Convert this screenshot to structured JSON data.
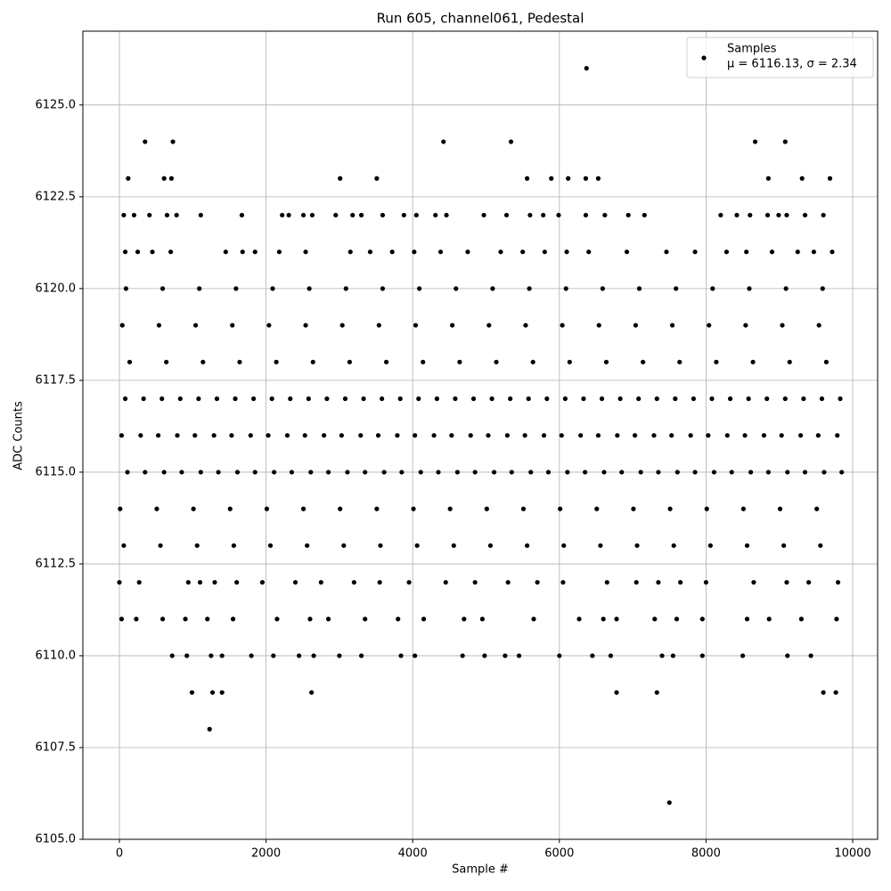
{
  "chart_data": {
    "type": "scatter",
    "title": "Run 605, channel061, Pedestal",
    "x_label": "Sample #",
    "y_label": "ADC Counts",
    "xlim": [
      -498,
      10340
    ],
    "ylim": [
      6105,
      6127.01
    ],
    "xticks": [
      0,
      2000,
      4000,
      6000,
      8000,
      10000
    ],
    "yticks": [
      {
        "value": 6105,
        "label": "6105.0"
      },
      {
        "value": 6107.5,
        "label": "6107.5"
      },
      {
        "value": 6110,
        "label": "6110.0"
      },
      {
        "value": 6112.5,
        "label": "6112.5"
      },
      {
        "value": 6115,
        "label": "6115.0"
      },
      {
        "value": 6117.5,
        "label": "6117.5"
      },
      {
        "value": 6120,
        "label": "6120.0"
      },
      {
        "value": 6122.5,
        "label": "6122.5"
      },
      {
        "value": 6125,
        "label": "6125.0"
      }
    ],
    "grid": true,
    "legend": "upper right",
    "legend_label": "μ = 6116.13, σ = 2.34",
    "series": [
      {
        "name": "Samples",
        "color": "#000000",
        "x": [
          60,
          560,
          1060,
          1560,
          2060,
          2560,
          3060,
          3560,
          4060,
          4560,
          5060,
          5560,
          6060,
          6560,
          7060,
          7560,
          8060,
          8560,
          9060,
          9560,
          10,
          510,
          1010,
          1510,
          2010,
          2510,
          3010,
          3510,
          4010,
          4510,
          5010,
          5510,
          6010,
          6510,
          7010,
          7510,
          8010,
          8510,
          9010,
          9510,
          110,
          610,
          1110,
          1610,
          2110,
          2610,
          3110,
          3610,
          4110,
          4610,
          5110,
          5610,
          6110,
          6610,
          7110,
          7610,
          8110,
          8610,
          9110,
          9610,
          30,
          530,
          1030,
          1530,
          2030,
          2530,
          3030,
          3530,
          4030,
          4530,
          5030,
          5530,
          6030,
          6530,
          7030,
          7530,
          8030,
          8530,
          9030,
          9530,
          80,
          580,
          1080,
          1580,
          2080,
          2580,
          3080,
          3580,
          4080,
          4580,
          5080,
          5580,
          6080,
          6580,
          7080,
          7580,
          8080,
          8580,
          9080,
          9580,
          140,
          640,
          1140,
          1640,
          2140,
          2640,
          3140,
          3640,
          4140,
          4640,
          5140,
          5640,
          6140,
          6640,
          7140,
          7640,
          8140,
          8640,
          9140,
          9640,
          40,
          540,
          1040,
          1540,
          2040,
          2540,
          3040,
          3540,
          4040,
          4540,
          5040,
          5540,
          6040,
          6540,
          7040,
          7540,
          8040,
          8540,
          9040,
          9540,
          90,
          590,
          1090,
          1590,
          2090,
          2590,
          3090,
          3590,
          4090,
          4590,
          5090,
          5590,
          6090,
          6590,
          7090,
          7590,
          8090,
          8590,
          9090,
          9590,
          350,
          850,
          1350,
          1850,
          2350,
          2850,
          3350,
          3850,
          4350,
          4850,
          5350,
          5850,
          6350,
          6850,
          7350,
          7850,
          8350,
          8850,
          9350,
          9850,
          290,
          790,
          1290,
          1790,
          2290,
          2790,
          3290,
          3790,
          4290,
          4790,
          5290,
          5790,
          6290,
          6790,
          7290,
          7790,
          8290,
          8790,
          9290,
          9790,
          330,
          830,
          1330,
          1830,
          2330,
          2830,
          3330,
          3830,
          4330,
          4830,
          5330,
          5830,
          6330,
          6830,
          7330,
          7830,
          8330,
          8830,
          9330,
          9830,
          6370,
          350,
          730,
          4420,
          5340,
          8670,
          9080,
          120,
          610,
          710,
          3010,
          3510,
          5560,
          5890,
          6120,
          6360,
          6530,
          8850,
          9310,
          9690,
          60,
          200,
          410,
          650,
          780,
          1110,
          1670,
          2220,
          2310,
          2510,
          2630,
          2950,
          3180,
          3300,
          3590,
          3880,
          4050,
          4310,
          4460,
          4970,
          5280,
          5600,
          5780,
          5990,
          6360,
          6620,
          6940,
          7160,
          8200,
          8420,
          8600,
          8840,
          8990,
          9100,
          9350,
          9600,
          80,
          250,
          450,
          700,
          1450,
          1680,
          1850,
          2180,
          2540,
          3150,
          3420,
          3720,
          4020,
          4380,
          4750,
          5200,
          5500,
          5800,
          6100,
          6400,
          6920,
          7460,
          7850,
          8280,
          8550,
          8900,
          9250,
          9470,
          9720,
          0,
          270,
          940,
          1100,
          1300,
          1600,
          1950,
          2400,
          2750,
          3200,
          3550,
          3950,
          4450,
          4850,
          5300,
          5700,
          6050,
          6650,
          7050,
          7350,
          7650,
          8000,
          8650,
          9100,
          9400,
          9800,
          30,
          230,
          590,
          900,
          1200,
          1550,
          2150,
          2600,
          2850,
          3350,
          3800,
          4150,
          4700,
          4950,
          5650,
          6270,
          6600,
          6780,
          7300,
          7600,
          7950,
          8560,
          8860,
          9300,
          9780,
          720,
          920,
          1250,
          1400,
          1800,
          2100,
          2450,
          2650,
          3000,
          3300,
          3840,
          4030,
          4680,
          4980,
          5260,
          5450,
          6000,
          6450,
          6700,
          7400,
          7550,
          7950,
          8500,
          9110,
          9430,
          990,
          1270,
          1400,
          2620,
          6780,
          7330,
          9600,
          9770,
          1230,
          7500
        ],
        "values": [
          6113,
          6113,
          6113,
          6113,
          6113,
          6113,
          6113,
          6113,
          6113,
          6113,
          6113,
          6113,
          6113,
          6113,
          6113,
          6113,
          6113,
          6113,
          6113,
          6113,
          6114,
          6114,
          6114,
          6114,
          6114,
          6114,
          6114,
          6114,
          6114,
          6114,
          6114,
          6114,
          6114,
          6114,
          6114,
          6114,
          6114,
          6114,
          6114,
          6114,
          6115,
          6115,
          6115,
          6115,
          6115,
          6115,
          6115,
          6115,
          6115,
          6115,
          6115,
          6115,
          6115,
          6115,
          6115,
          6115,
          6115,
          6115,
          6115,
          6115,
          6116,
          6116,
          6116,
          6116,
          6116,
          6116,
          6116,
          6116,
          6116,
          6116,
          6116,
          6116,
          6116,
          6116,
          6116,
          6116,
          6116,
          6116,
          6116,
          6116,
          6117,
          6117,
          6117,
          6117,
          6117,
          6117,
          6117,
          6117,
          6117,
          6117,
          6117,
          6117,
          6117,
          6117,
          6117,
          6117,
          6117,
          6117,
          6117,
          6117,
          6118,
          6118,
          6118,
          6118,
          6118,
          6118,
          6118,
          6118,
          6118,
          6118,
          6118,
          6118,
          6118,
          6118,
          6118,
          6118,
          6118,
          6118,
          6118,
          6118,
          6119,
          6119,
          6119,
          6119,
          6119,
          6119,
          6119,
          6119,
          6119,
          6119,
          6119,
          6119,
          6119,
          6119,
          6119,
          6119,
          6119,
          6119,
          6119,
          6119,
          6120,
          6120,
          6120,
          6120,
          6120,
          6120,
          6120,
          6120,
          6120,
          6120,
          6120,
          6120,
          6120,
          6120,
          6120,
          6120,
          6120,
          6120,
          6120,
          6120,
          6115,
          6115,
          6115,
          6115,
          6115,
          6115,
          6115,
          6115,
          6115,
          6115,
          6115,
          6115,
          6115,
          6115,
          6115,
          6115,
          6115,
          6115,
          6115,
          6115,
          6116,
          6116,
          6116,
          6116,
          6116,
          6116,
          6116,
          6116,
          6116,
          6116,
          6116,
          6116,
          6116,
          6116,
          6116,
          6116,
          6116,
          6116,
          6116,
          6116,
          6117,
          6117,
          6117,
          6117,
          6117,
          6117,
          6117,
          6117,
          6117,
          6117,
          6117,
          6117,
          6117,
          6117,
          6117,
          6117,
          6117,
          6117,
          6117,
          6117,
          6126,
          6124,
          6124,
          6124,
          6124,
          6124,
          6124,
          6123,
          6123,
          6123,
          6123,
          6123,
          6123,
          6123,
          6123,
          6123,
          6123,
          6123,
          6123,
          6123,
          6122,
          6122,
          6122,
          6122,
          6122,
          6122,
          6122,
          6122,
          6122,
          6122,
          6122,
          6122,
          6122,
          6122,
          6122,
          6122,
          6122,
          6122,
          6122,
          6122,
          6122,
          6122,
          6122,
          6122,
          6122,
          6122,
          6122,
          6122,
          6122,
          6122,
          6122,
          6122,
          6122,
          6122,
          6122,
          6122,
          6121,
          6121,
          6121,
          6121,
          6121,
          6121,
          6121,
          6121,
          6121,
          6121,
          6121,
          6121,
          6121,
          6121,
          6121,
          6121,
          6121,
          6121,
          6121,
          6121,
          6121,
          6121,
          6121,
          6121,
          6121,
          6121,
          6121,
          6121,
          6121,
          6112,
          6112,
          6112,
          6112,
          6112,
          6112,
          6112,
          6112,
          6112,
          6112,
          6112,
          6112,
          6112,
          6112,
          6112,
          6112,
          6112,
          6112,
          6112,
          6112,
          6112,
          6112,
          6112,
          6112,
          6112,
          6112,
          6111,
          6111,
          6111,
          6111,
          6111,
          6111,
          6111,
          6111,
          6111,
          6111,
          6111,
          6111,
          6111,
          6111,
          6111,
          6111,
          6111,
          6111,
          6111,
          6111,
          6111,
          6111,
          6111,
          6111,
          6111,
          6110,
          6110,
          6110,
          6110,
          6110,
          6110,
          6110,
          6110,
          6110,
          6110,
          6110,
          6110,
          6110,
          6110,
          6110,
          6110,
          6110,
          6110,
          6110,
          6110,
          6110,
          6110,
          6110,
          6110,
          6110,
          6109,
          6109,
          6109,
          6109,
          6109,
          6109,
          6109,
          6109,
          6108,
          6106
        ]
      }
    ]
  }
}
